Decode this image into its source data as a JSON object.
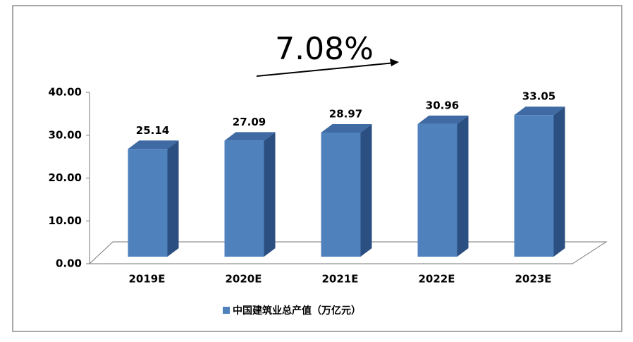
{
  "chart_data": {
    "type": "bar3d",
    "annotation": "7.08%",
    "categories": [
      "2019E",
      "2020E",
      "2021E",
      "2022E",
      "2023E"
    ],
    "series": [
      {
        "name": "中国建筑业总产值（万亿元）",
        "color": "#4f81bd",
        "values": [
          25.14,
          27.09,
          28.97,
          30.96,
          33.05
        ]
      }
    ],
    "ylim": [
      0,
      40
    ],
    "yticks": [
      {
        "value": 0,
        "label": "0.00"
      },
      {
        "value": 10,
        "label": "10.00"
      },
      {
        "value": 20,
        "label": "20.00"
      },
      {
        "value": 30,
        "label": "30.00"
      },
      {
        "value": 40,
        "label": "40.00"
      }
    ],
    "legend": "bottom"
  }
}
